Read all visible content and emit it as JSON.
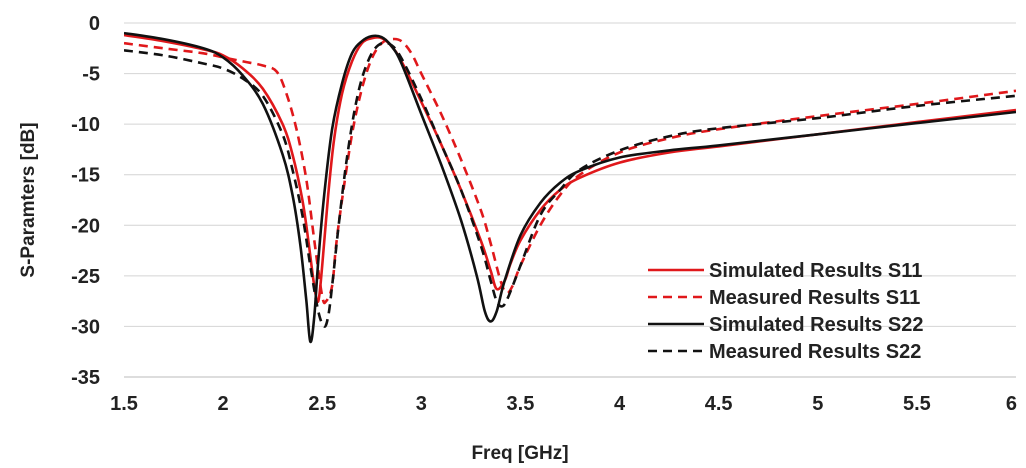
{
  "chart_data": {
    "type": "line",
    "title": "",
    "xlabel": "Freq [GHz]",
    "ylabel": "S-Paramters [dB]",
    "xlim": [
      1.5,
      6
    ],
    "ylim": [
      -35,
      0
    ],
    "xticks": [
      "1.5",
      "2",
      "2.5",
      "3",
      "3.5",
      "4",
      "4.5",
      "5",
      "5.5",
      "6"
    ],
    "yticks": [
      "0",
      "-5",
      "-10",
      "-15",
      "-20",
      "-25",
      "-30",
      "-35"
    ],
    "grid": "horizontal",
    "legend_position": "bottom-right",
    "series": [
      {
        "name": "Simulated Results S11",
        "color": "#e0181b",
        "dash": "solid",
        "x": [
          1.5,
          1.7,
          1.9,
          2.0,
          2.1,
          2.2,
          2.3,
          2.35,
          2.4,
          2.43,
          2.46,
          2.48,
          2.5,
          2.53,
          2.56,
          2.6,
          2.65,
          2.7,
          2.75,
          2.8,
          2.85,
          2.9,
          3.0,
          3.1,
          3.2,
          3.3,
          3.35,
          3.38,
          3.42,
          3.45,
          3.5,
          3.6,
          3.7,
          3.8,
          4.0,
          4.25,
          4.5,
          5.0,
          5.5,
          6.0
        ],
        "y": [
          -1.2,
          -1.8,
          -2.6,
          -3.2,
          -4.5,
          -6.5,
          -10.0,
          -13.0,
          -17.5,
          -21.5,
          -26.0,
          -27.5,
          -24.0,
          -17.0,
          -11.5,
          -7.0,
          -3.8,
          -2.0,
          -1.5,
          -1.5,
          -2.3,
          -3.8,
          -7.8,
          -12.0,
          -16.5,
          -21.5,
          -24.5,
          -26.3,
          -25.5,
          -23.8,
          -21.5,
          -18.5,
          -16.5,
          -15.3,
          -13.8,
          -12.8,
          -12.2,
          -11.0,
          -9.8,
          -8.6
        ]
      },
      {
        "name": "Measured Results S11",
        "color": "#e0181b",
        "dash": "dashed",
        "x": [
          1.5,
          1.7,
          1.9,
          2.0,
          2.1,
          2.2,
          2.27,
          2.32,
          2.37,
          2.42,
          2.46,
          2.5,
          2.52,
          2.55,
          2.57,
          2.6,
          2.65,
          2.7,
          2.75,
          2.8,
          2.85,
          2.9,
          2.95,
          3.0,
          3.1,
          3.2,
          3.3,
          3.35,
          3.4,
          3.43,
          3.46,
          3.5,
          3.6,
          3.7,
          3.8,
          4.0,
          4.25,
          4.5,
          5.0,
          5.5,
          6.0
        ],
        "y": [
          -2.0,
          -2.5,
          -3.0,
          -3.4,
          -3.8,
          -4.2,
          -4.8,
          -7.0,
          -10.5,
          -15.5,
          -21.5,
          -27.0,
          -27.5,
          -26.0,
          -22.0,
          -17.5,
          -11.0,
          -6.5,
          -3.5,
          -2.0,
          -1.6,
          -1.8,
          -3.0,
          -5.0,
          -9.0,
          -13.5,
          -18.5,
          -21.8,
          -25.5,
          -26.7,
          -26.0,
          -24.0,
          -20.0,
          -17.0,
          -15.0,
          -12.8,
          -11.4,
          -10.5,
          -9.2,
          -8.0,
          -6.7
        ]
      },
      {
        "name": "Simulated Results S22",
        "color": "#111111",
        "dash": "solid",
        "x": [
          1.5,
          1.7,
          1.9,
          2.0,
          2.1,
          2.2,
          2.3,
          2.35,
          2.39,
          2.42,
          2.44,
          2.46,
          2.48,
          2.51,
          2.55,
          2.6,
          2.65,
          2.7,
          2.75,
          2.8,
          2.85,
          2.9,
          3.0,
          3.1,
          3.2,
          3.28,
          3.32,
          3.35,
          3.38,
          3.42,
          3.5,
          3.6,
          3.7,
          3.8,
          4.0,
          4.25,
          4.5,
          5.0,
          5.5,
          6.0
        ],
        "y": [
          -1.0,
          -1.6,
          -2.5,
          -3.4,
          -5.2,
          -8.0,
          -13.0,
          -17.0,
          -22.0,
          -27.5,
          -31.5,
          -29.0,
          -23.5,
          -17.0,
          -10.5,
          -6.0,
          -3.0,
          -1.8,
          -1.3,
          -1.4,
          -2.3,
          -4.0,
          -9.0,
          -14.0,
          -19.5,
          -25.0,
          -28.5,
          -29.5,
          -28.5,
          -25.5,
          -21.0,
          -17.8,
          -15.8,
          -14.6,
          -13.3,
          -12.6,
          -12.1,
          -11.0,
          -9.9,
          -8.8
        ]
      },
      {
        "name": "Measured Results S22",
        "color": "#111111",
        "dash": "dashed",
        "x": [
          1.5,
          1.7,
          1.9,
          2.0,
          2.1,
          2.2,
          2.3,
          2.35,
          2.4,
          2.44,
          2.48,
          2.51,
          2.53,
          2.55,
          2.58,
          2.62,
          2.66,
          2.7,
          2.75,
          2.8,
          2.85,
          2.9,
          3.0,
          3.1,
          3.2,
          3.3,
          3.35,
          3.38,
          3.41,
          3.44,
          3.5,
          3.6,
          3.7,
          3.8,
          4.0,
          4.25,
          4.5,
          5.0,
          5.5,
          6.0
        ],
        "y": [
          -2.7,
          -3.2,
          -4.0,
          -4.5,
          -5.5,
          -7.2,
          -11.0,
          -14.5,
          -19.0,
          -24.0,
          -28.5,
          -30.0,
          -29.0,
          -26.0,
          -20.5,
          -14.0,
          -9.0,
          -5.5,
          -3.0,
          -2.0,
          -2.2,
          -3.5,
          -7.5,
          -12.0,
          -16.5,
          -22.0,
          -25.5,
          -27.5,
          -28.0,
          -27.0,
          -24.0,
          -19.0,
          -16.5,
          -14.5,
          -12.6,
          -11.2,
          -10.4,
          -9.4,
          -8.2,
          -7.2
        ]
      }
    ]
  }
}
